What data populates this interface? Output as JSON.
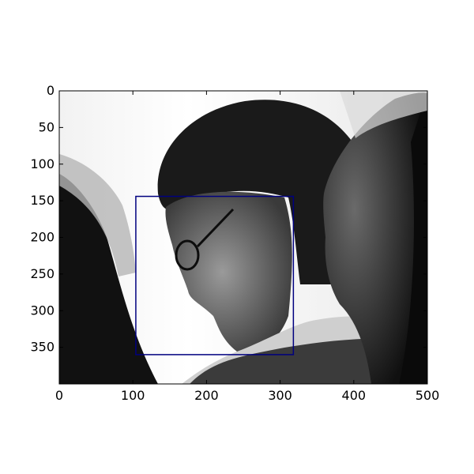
{
  "image": {
    "description_icon": "grayscale-photo",
    "extent": {
      "x_min": 0,
      "x_max": 500,
      "y_min": 0,
      "y_max": 400
    }
  },
  "axes": {
    "x_ticks": [
      "0",
      "100",
      "200",
      "300",
      "400",
      "500"
    ],
    "x_tick_values": [
      0,
      100,
      200,
      300,
      400,
      500
    ],
    "y_ticks": [
      "0",
      "50",
      "100",
      "150",
      "200",
      "250",
      "300",
      "350"
    ],
    "y_tick_values": [
      0,
      50,
      100,
      150,
      200,
      250,
      300,
      350
    ],
    "y_inverted": true
  },
  "annotation": {
    "type": "rectangle",
    "color": "#00007f",
    "x_min": 104,
    "y_min": 144,
    "x_max": 318,
    "y_max": 360
  }
}
